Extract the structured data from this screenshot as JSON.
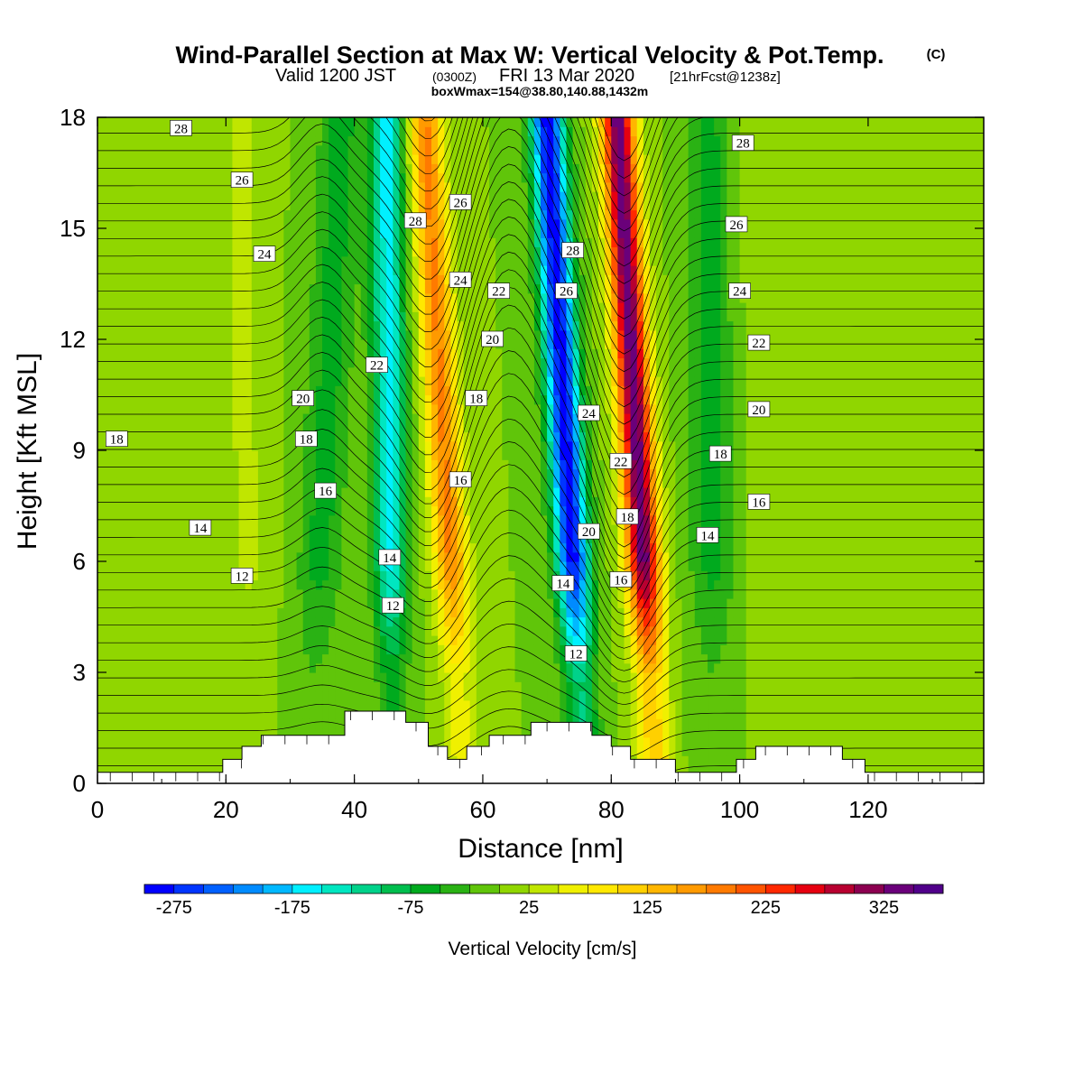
{
  "title": {
    "line1": "Wind-Parallel Section at Max W: Vertical Velocity & Pot.Temp.",
    "copyright": "(C)",
    "line2_a": "Valid 1200 JST",
    "line2_b": "(0300Z)",
    "line2_c": "FRI 13 Mar 2020",
    "line2_d": "[21hrFcst@1238z]",
    "line3": "boxWmax=154@38.80,140.88,1432m"
  },
  "chart_data": {
    "type": "heatmap",
    "title": "Wind-Parallel Section at Max W: Vertical Velocity & Pot.Temp.",
    "xlabel": "Distance [nm]",
    "ylabel": "Height [Kft MSL]",
    "xlim": [
      0,
      138
    ],
    "ylim": [
      0,
      18
    ],
    "x_ticks": [
      "0",
      "20",
      "40",
      "60",
      "80",
      "100",
      "120"
    ],
    "x_tick_values": [
      0,
      20,
      40,
      60,
      80,
      100,
      120
    ],
    "y_ticks": [
      "0",
      "3",
      "6",
      "9",
      "12",
      "15",
      "18"
    ],
    "y_tick_values": [
      0,
      3,
      6,
      9,
      12,
      15,
      18
    ],
    "colorbar": {
      "label": "Vertical Velocity [cm/s]",
      "tick_labels": [
        "-275",
        "-175",
        "-75",
        "25",
        "125",
        "225",
        "325"
      ],
      "tick_values": [
        -275,
        -175,
        -75,
        25,
        125,
        225,
        325
      ],
      "levels_min": -300,
      "levels_max": 375,
      "step": 25,
      "colors": [
        "#0000ff",
        "#0035ff",
        "#0060ff",
        "#008bff",
        "#00b8ff",
        "#00f0ff",
        "#00e6c0",
        "#00d28a",
        "#00be4e",
        "#00aa1e",
        "#2ab214",
        "#60c50a",
        "#90d600",
        "#c0e600",
        "#f0f000",
        "#ffe800",
        "#ffd000",
        "#ffb600",
        "#ff9a00",
        "#ff7a00",
        "#ff5400",
        "#ff2800",
        "#e60010",
        "#b80030",
        "#8c0050",
        "#6a007a",
        "#50008a"
      ]
    },
    "velocity_field": {
      "background_cm_s": 0,
      "features": [
        {
          "kind": "downdraft",
          "x_bottom": 46,
          "x_top": 45,
          "peak": -160
        },
        {
          "kind": "updraft",
          "x_bottom": 57,
          "x_top": 51,
          "peak": 180
        },
        {
          "kind": "downdraft",
          "x_bottom": 76,
          "x_top": 70,
          "peak": -290
        },
        {
          "kind": "updraft",
          "x_bottom": 87,
          "x_top": 81,
          "peak": 340
        },
        {
          "kind": "downdraft",
          "x_bottom": 33,
          "x_top": 38,
          "peak": -60
        },
        {
          "kind": "updraft",
          "x_bottom": 24,
          "x_top": 22,
          "peak": 30
        },
        {
          "kind": "downdraft",
          "x_bottom": 96,
          "x_top": 95,
          "peak": -60
        },
        {
          "kind": "updraft",
          "x_bottom": 106,
          "x_top": 104,
          "peak": 25
        }
      ]
    },
    "theta_contour_labels": [
      {
        "text": "28",
        "x": 13,
        "y": 17.7
      },
      {
        "text": "26",
        "x": 22.5,
        "y": 16.3
      },
      {
        "text": "24",
        "x": 26,
        "y": 14.3
      },
      {
        "text": "18",
        "x": 3,
        "y": 9.3
      },
      {
        "text": "14",
        "x": 16,
        "y": 6.9
      },
      {
        "text": "12",
        "x": 22.5,
        "y": 5.6
      },
      {
        "text": "20",
        "x": 32,
        "y": 10.4
      },
      {
        "text": "18",
        "x": 32.5,
        "y": 9.3
      },
      {
        "text": "16",
        "x": 35.5,
        "y": 7.9
      },
      {
        "text": "22",
        "x": 43.5,
        "y": 11.3
      },
      {
        "text": "14",
        "x": 45.5,
        "y": 6.1
      },
      {
        "text": "12",
        "x": 46,
        "y": 4.8
      },
      {
        "text": "28",
        "x": 49.5,
        "y": 15.2
      },
      {
        "text": "26",
        "x": 56.5,
        "y": 15.7
      },
      {
        "text": "24",
        "x": 56.5,
        "y": 13.6
      },
      {
        "text": "22",
        "x": 62.5,
        "y": 13.3
      },
      {
        "text": "20",
        "x": 61.5,
        "y": 12.0
      },
      {
        "text": "18",
        "x": 59,
        "y": 10.4
      },
      {
        "text": "16",
        "x": 56.5,
        "y": 8.2
      },
      {
        "text": "28",
        "x": 74,
        "y": 14.4
      },
      {
        "text": "26",
        "x": 73,
        "y": 13.3
      },
      {
        "text": "24",
        "x": 76.5,
        "y": 10.0
      },
      {
        "text": "22",
        "x": 81.5,
        "y": 8.7
      },
      {
        "text": "20",
        "x": 76.5,
        "y": 6.8
      },
      {
        "text": "18",
        "x": 82.5,
        "y": 7.2
      },
      {
        "text": "16",
        "x": 81.5,
        "y": 5.5
      },
      {
        "text": "14",
        "x": 72.5,
        "y": 5.4
      },
      {
        "text": "12",
        "x": 74.5,
        "y": 3.5
      },
      {
        "text": "28",
        "x": 100.5,
        "y": 17.3
      },
      {
        "text": "26",
        "x": 99.5,
        "y": 15.1
      },
      {
        "text": "24",
        "x": 100,
        "y": 13.3
      },
      {
        "text": "22",
        "x": 103,
        "y": 11.9
      },
      {
        "text": "20",
        "x": 103,
        "y": 10.1
      },
      {
        "text": "18",
        "x": 97,
        "y": 8.9
      },
      {
        "text": "16",
        "x": 103,
        "y": 7.6
      },
      {
        "text": "14",
        "x": 95,
        "y": 6.7
      }
    ],
    "terrain_steps_kft": [
      [
        0,
        0.3
      ],
      [
        19.5,
        0.3
      ],
      [
        19.5,
        0.65
      ],
      [
        22.5,
        0.65
      ],
      [
        22.5,
        1.0
      ],
      [
        25.5,
        1.0
      ],
      [
        25.5,
        1.3
      ],
      [
        38.5,
        1.3
      ],
      [
        38.5,
        1.95
      ],
      [
        48,
        1.95
      ],
      [
        48,
        1.65
      ],
      [
        51.5,
        1.65
      ],
      [
        51.5,
        1.0
      ],
      [
        54.5,
        1.0
      ],
      [
        54.5,
        0.65
      ],
      [
        57.5,
        0.65
      ],
      [
        57.5,
        1.0
      ],
      [
        61,
        1.0
      ],
      [
        61,
        1.3
      ],
      [
        67.5,
        1.3
      ],
      [
        67.5,
        1.65
      ],
      [
        77,
        1.65
      ],
      [
        77,
        1.3
      ],
      [
        80,
        1.3
      ],
      [
        80,
        1.0
      ],
      [
        83,
        1.0
      ],
      [
        83,
        0.65
      ],
      [
        90,
        0.65
      ],
      [
        90,
        0.3
      ],
      [
        99.5,
        0.3
      ],
      [
        99.5,
        0.65
      ],
      [
        102.5,
        0.65
      ],
      [
        102.5,
        1.0
      ],
      [
        116,
        1.0
      ],
      [
        116,
        0.65
      ],
      [
        119.5,
        0.65
      ],
      [
        119.5,
        0.3
      ],
      [
        138,
        0.3
      ]
    ]
  }
}
